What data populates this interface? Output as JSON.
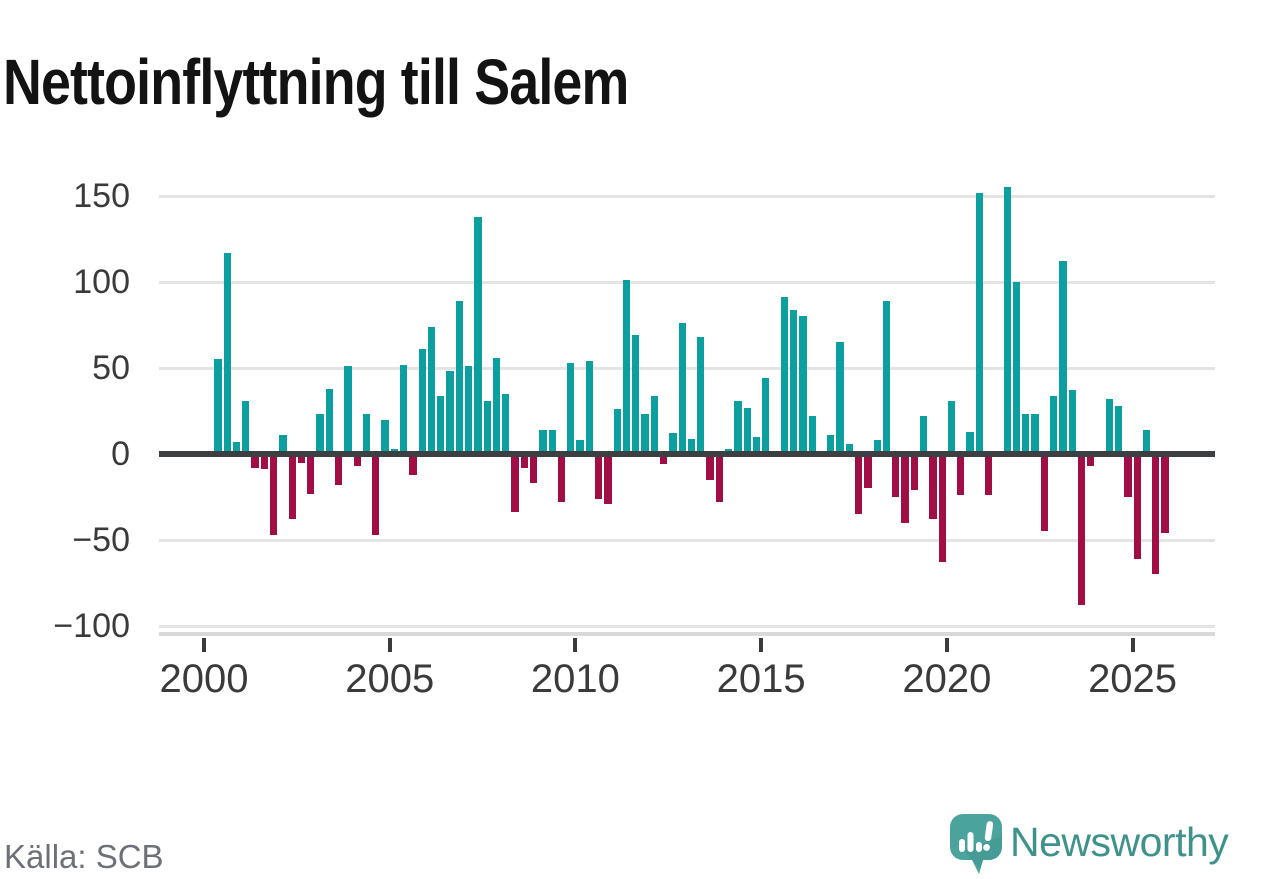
{
  "title": "Nettoinflyttning till Salem",
  "source": "Källa: SCB",
  "branding": {
    "name": "Newsworthy"
  },
  "colors": {
    "positive_bar": "#0c9f9f",
    "negative_bar": "#a00e45",
    "gridline": "#e4e4e4",
    "zero_axis": "#3d4043",
    "bottom_axis": "#d9d9d9",
    "tick_label": "#3a3a3a",
    "title_text": "#131313",
    "source_text": "#6d7078",
    "logo_bubble": "#4aa39c",
    "logo_text": "#3f928c"
  },
  "chart_data": {
    "type": "bar",
    "title": "Nettoinflyttning till Salem",
    "xlabel": "",
    "ylabel": "",
    "frequency": "quarterly",
    "legend": false,
    "grid": "horizontal",
    "ylim": [
      -100,
      160
    ],
    "y_ticks": [
      150,
      100,
      50,
      0,
      -50,
      -100
    ],
    "x_ticks": [
      2000,
      2005,
      2010,
      2015,
      2020,
      2025
    ],
    "series_name": "Nettoinflyttning till Salem",
    "quarters": [
      "2000Q2",
      "2000Q3",
      "2000Q4",
      "2001Q1",
      "2001Q2",
      "2001Q3",
      "2001Q4",
      "2002Q1",
      "2002Q2",
      "2002Q3",
      "2002Q4",
      "2003Q1",
      "2003Q2",
      "2003Q3",
      "2003Q4",
      "2004Q1",
      "2004Q2",
      "2004Q3",
      "2004Q4",
      "2005Q1",
      "2005Q2",
      "2005Q3",
      "2005Q4",
      "2006Q1",
      "2006Q2",
      "2006Q3",
      "2006Q4",
      "2007Q1",
      "2007Q2",
      "2007Q3",
      "2007Q4",
      "2008Q1",
      "2008Q2",
      "2008Q3",
      "2008Q4",
      "2009Q1",
      "2009Q2",
      "2009Q3",
      "2009Q4",
      "2010Q1",
      "2010Q2",
      "2010Q3",
      "2010Q4",
      "2011Q1",
      "2011Q2",
      "2011Q3",
      "2011Q4",
      "2012Q1",
      "2012Q2",
      "2012Q3",
      "2012Q4",
      "2013Q1",
      "2013Q2",
      "2013Q3",
      "2013Q4",
      "2014Q1",
      "2014Q2",
      "2014Q3",
      "2014Q4",
      "2015Q1",
      "2015Q2",
      "2015Q3",
      "2015Q4",
      "2016Q1",
      "2016Q2",
      "2016Q3",
      "2016Q4",
      "2017Q1",
      "2017Q2",
      "2017Q3",
      "2017Q4",
      "2018Q1",
      "2018Q2",
      "2018Q3",
      "2018Q4",
      "2019Q1",
      "2019Q2",
      "2019Q3",
      "2019Q4",
      "2020Q1",
      "2020Q2",
      "2020Q3",
      "2020Q4",
      "2021Q1",
      "2021Q2",
      "2021Q3",
      "2021Q4",
      "2022Q1",
      "2022Q2",
      "2022Q3",
      "2022Q4",
      "2023Q1",
      "2023Q2",
      "2023Q3",
      "2023Q4",
      "2024Q1",
      "2024Q2",
      "2024Q3",
      "2024Q4",
      "2025Q1",
      "2025Q2",
      "2025Q3",
      "2025Q4"
    ],
    "values": [
      55,
      117,
      7,
      31,
      -8,
      -9,
      -47,
      11,
      -38,
      -5,
      -23,
      23,
      38,
      -18,
      51,
      -7,
      23,
      -47,
      20,
      3,
      52,
      -12,
      61,
      74,
      34,
      48,
      89,
      51,
      138,
      31,
      56,
      35,
      -34,
      -8,
      -17,
      14,
      14,
      -28,
      53,
      8,
      54,
      -26,
      -29,
      26,
      101,
      69,
      23,
      34,
      -6,
      12,
      76,
      9,
      68,
      -15,
      -28,
      3,
      31,
      27,
      10,
      44,
      2,
      91,
      84,
      80,
      22,
      2,
      11,
      65,
      6,
      -35,
      -20,
      8,
      89,
      -25,
      -40,
      -21,
      22,
      -38,
      -63,
      31,
      -24,
      13,
      152,
      -24,
      0,
      155,
      100,
      23,
      23,
      -45,
      34,
      112,
      37,
      -88,
      -7,
      2,
      32,
      28,
      -25,
      -61,
      14,
      -70,
      -46
    ]
  }
}
